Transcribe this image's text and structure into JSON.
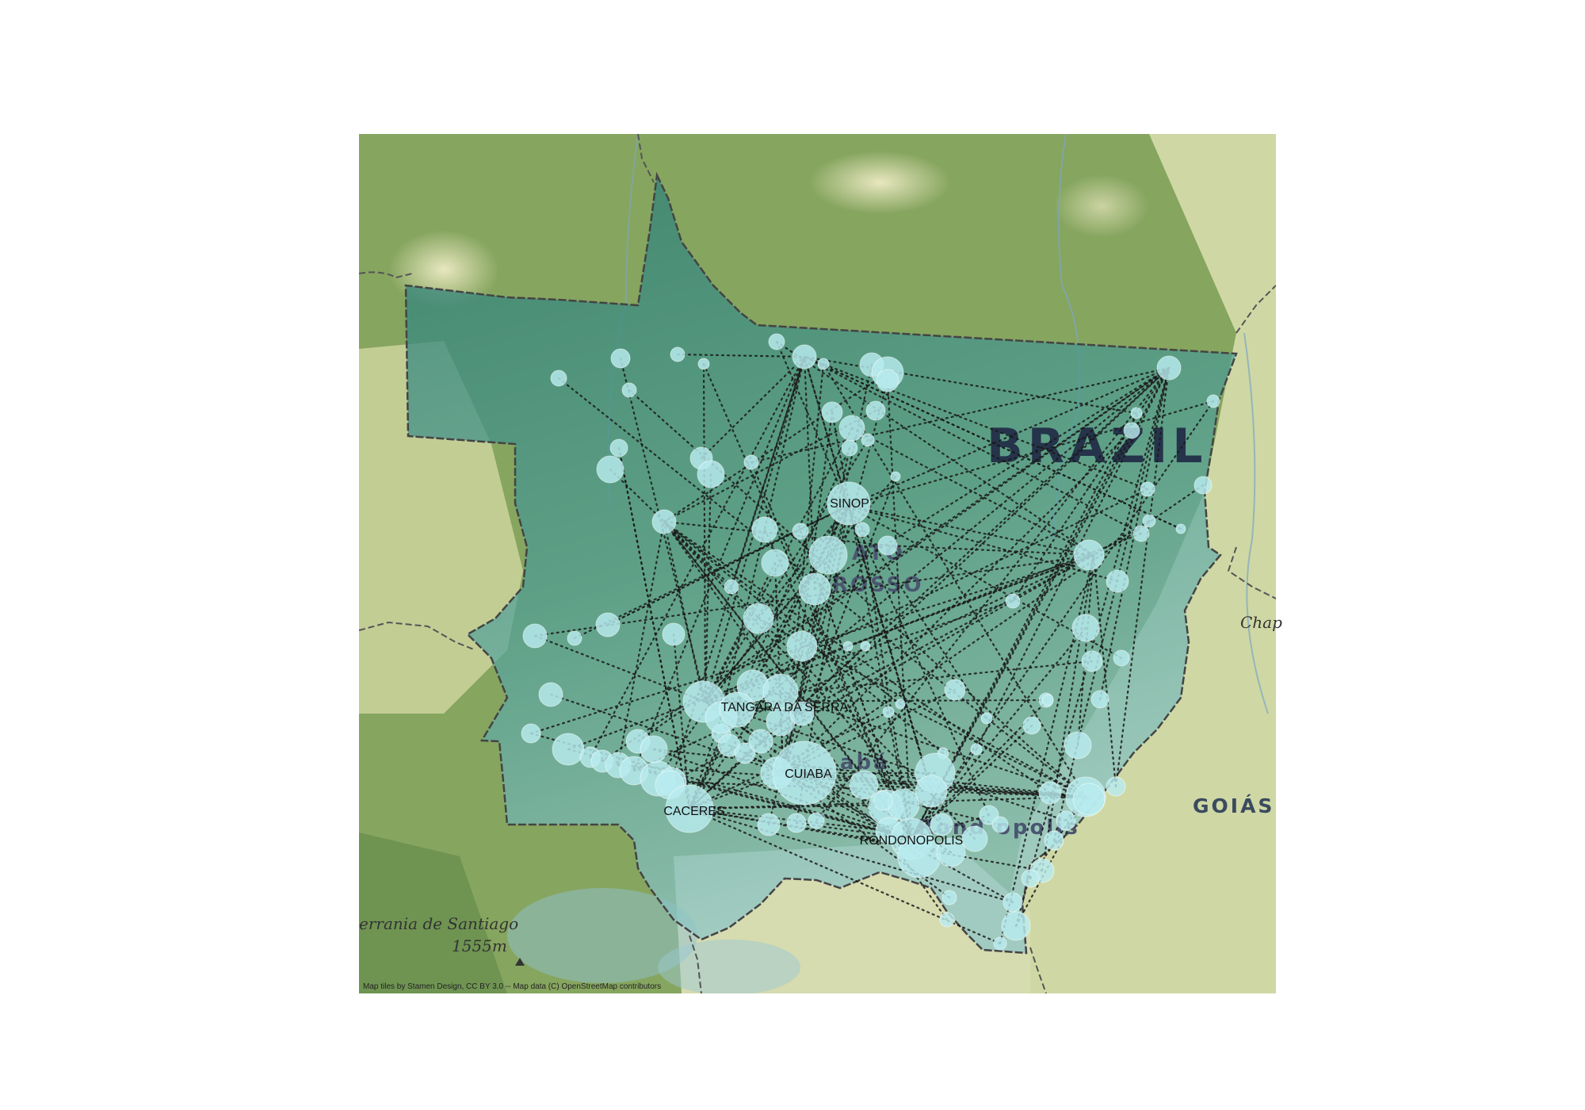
{
  "map": {
    "basemap_labels": {
      "country": "BRAZIL",
      "state_line1": "ATO",
      "state_line2": "ROSSO",
      "neighbor_state": "GOIÁS",
      "edge_city": "Chap",
      "map_city_partial": "Rond  opolis",
      "map_city_partial2": "abá",
      "mountain_name": "errania de Santiago",
      "mountain_elev": "1555m"
    },
    "city_labels": [
      "SINOP",
      "TANGARA DA SERRA",
      "CUIABA",
      "CACERES",
      "RONDONOPOLIS"
    ],
    "attribution": "Map tiles by Stamen Design, CC BY 3.0 -- Map data (C) OpenStreetMap contributors",
    "colors": {
      "bubble": "#b8ecef",
      "region_fill": "#2f7f7a",
      "flow_line": "#1a1a1a",
      "forest": "#7ea05a",
      "savanna": "#d9ddb0"
    }
  }
}
